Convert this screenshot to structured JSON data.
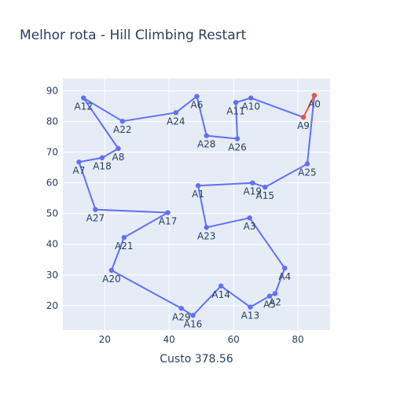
{
  "chart_data": {
    "type": "scatter",
    "title": "Melhor rota - Hill Climbing Restart",
    "xlabel": "Custo 378.56",
    "ylabel": "",
    "xlim": [
      7,
      90
    ],
    "ylim": [
      12,
      94
    ],
    "xticks": [
      20,
      40,
      60,
      80
    ],
    "yticks": [
      20,
      30,
      40,
      50,
      60,
      70,
      80,
      90
    ],
    "grid": true,
    "legend": "none",
    "colors": {
      "route": "#636efa",
      "closing": "#ef553b",
      "background": "#e5ecf6"
    },
    "route": [
      {
        "label": "A0",
        "x": 85.1,
        "y": 88.5
      },
      {
        "label": "A25",
        "x": 82.9,
        "y": 66.2
      },
      {
        "label": "A15",
        "x": 69.8,
        "y": 58.6
      },
      {
        "label": "A19",
        "x": 65.9,
        "y": 60.0
      },
      {
        "label": "A1",
        "x": 49.0,
        "y": 59.1
      },
      {
        "label": "A23",
        "x": 51.6,
        "y": 45.5
      },
      {
        "label": "A3",
        "x": 65.0,
        "y": 48.6
      },
      {
        "label": "A4",
        "x": 75.9,
        "y": 32.2
      },
      {
        "label": "A2",
        "x": 72.9,
        "y": 23.9
      },
      {
        "label": "A5",
        "x": 71.2,
        "y": 23.1
      },
      {
        "label": "A13",
        "x": 65.2,
        "y": 19.5
      },
      {
        "label": "A14",
        "x": 56.1,
        "y": 26.4
      },
      {
        "label": "A16",
        "x": 47.4,
        "y": 16.8
      },
      {
        "label": "A29",
        "x": 43.8,
        "y": 19.1
      },
      {
        "label": "A20",
        "x": 22.1,
        "y": 31.5
      },
      {
        "label": "A21",
        "x": 26.0,
        "y": 42.2
      },
      {
        "label": "A17",
        "x": 39.6,
        "y": 50.3
      },
      {
        "label": "A27",
        "x": 17.1,
        "y": 51.3
      },
      {
        "label": "A7",
        "x": 12.0,
        "y": 66.8
      },
      {
        "label": "A18",
        "x": 19.2,
        "y": 68.2
      },
      {
        "label": "A8",
        "x": 24.2,
        "y": 71.2
      },
      {
        "label": "A12",
        "x": 13.4,
        "y": 87.7
      },
      {
        "label": "A22",
        "x": 25.5,
        "y": 80.1
      },
      {
        "label": "A24",
        "x": 42.1,
        "y": 82.9
      },
      {
        "label": "A6",
        "x": 48.6,
        "y": 88.2
      },
      {
        "label": "A28",
        "x": 51.6,
        "y": 75.4
      },
      {
        "label": "A26",
        "x": 61.2,
        "y": 74.4
      },
      {
        "label": "A11",
        "x": 60.7,
        "y": 86.2
      },
      {
        "label": "A10",
        "x": 65.4,
        "y": 87.7
      },
      {
        "label": "A9",
        "x": 81.7,
        "y": 81.4
      }
    ],
    "closing_segment": [
      {
        "x": 81.7,
        "y": 81.4
      },
      {
        "x": 85.1,
        "y": 88.5
      }
    ]
  }
}
